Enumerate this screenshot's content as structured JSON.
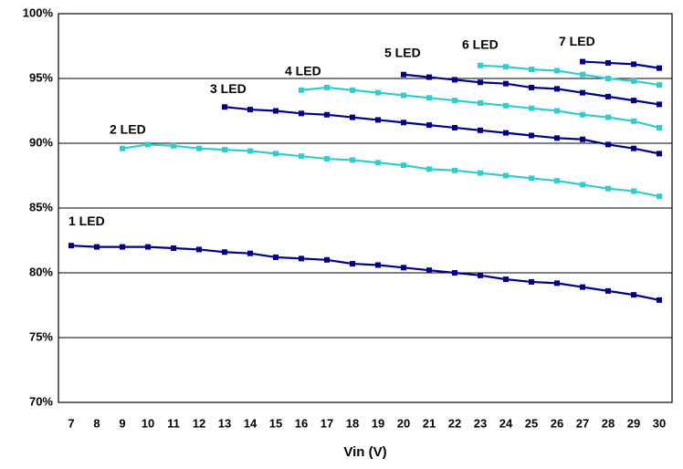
{
  "chart_data": {
    "type": "line",
    "xlabel": "Vin (V)",
    "categories": [
      7,
      8,
      9,
      10,
      11,
      12,
      13,
      14,
      15,
      16,
      17,
      18,
      19,
      20,
      21,
      22,
      23,
      24,
      25,
      26,
      27,
      28,
      29,
      30
    ],
    "series": [
      {
        "name": "1 LED",
        "color": "#000080",
        "values": [
          82.1,
          82.0,
          82.0,
          82.0,
          81.9,
          81.8,
          81.6,
          81.5,
          81.2,
          81.1,
          81.0,
          80.7,
          80.6,
          80.4,
          80.2,
          80.0,
          79.8,
          79.5,
          79.3,
          79.2,
          78.9,
          78.6,
          78.3,
          77.9
        ]
      },
      {
        "name": "2 LED",
        "color": "#33cccc",
        "values": [
          null,
          null,
          89.6,
          89.9,
          89.8,
          89.6,
          89.5,
          89.4,
          89.2,
          89.0,
          88.8,
          88.7,
          88.5,
          88.3,
          88.0,
          87.9,
          87.7,
          87.5,
          87.3,
          87.1,
          86.8,
          86.5,
          86.3,
          85.9
        ]
      },
      {
        "name": "3 LED",
        "color": "#000080",
        "values": [
          null,
          null,
          null,
          null,
          null,
          null,
          92.8,
          92.6,
          92.5,
          92.3,
          92.2,
          92.0,
          91.8,
          91.6,
          91.4,
          91.2,
          91.0,
          90.8,
          90.6,
          90.4,
          90.3,
          89.9,
          89.6,
          89.2
        ]
      },
      {
        "name": "4 LED",
        "color": "#33cccc",
        "values": [
          null,
          null,
          null,
          null,
          null,
          null,
          null,
          null,
          null,
          94.1,
          94.3,
          94.1,
          93.9,
          93.7,
          93.5,
          93.3,
          93.1,
          92.9,
          92.7,
          92.5,
          92.2,
          92.0,
          91.7,
          91.2
        ]
      },
      {
        "name": "5 LED",
        "color": "#000080",
        "values": [
          null,
          null,
          null,
          null,
          null,
          null,
          null,
          null,
          null,
          null,
          null,
          null,
          null,
          95.3,
          95.1,
          94.9,
          94.7,
          94.6,
          94.3,
          94.2,
          93.9,
          93.6,
          93.3,
          93.0
        ]
      },
      {
        "name": "6 LED",
        "color": "#33cccc",
        "values": [
          null,
          null,
          null,
          null,
          null,
          null,
          null,
          null,
          null,
          null,
          null,
          null,
          null,
          null,
          null,
          null,
          96.0,
          95.9,
          95.7,
          95.6,
          95.3,
          95.0,
          94.8,
          94.5
        ]
      },
      {
        "name": "7 LED",
        "color": "#000080",
        "values": [
          null,
          null,
          null,
          null,
          null,
          null,
          null,
          null,
          null,
          null,
          null,
          null,
          null,
          null,
          null,
          null,
          null,
          null,
          null,
          null,
          96.3,
          96.2,
          96.1,
          95.8
        ]
      }
    ],
    "ylim": [
      70,
      100
    ],
    "yticks": [
      {
        "value": 70,
        "label": "70%"
      },
      {
        "value": 75,
        "label": "75%"
      },
      {
        "value": 80,
        "label": "80%"
      },
      {
        "value": 85,
        "label": "85%"
      },
      {
        "value": 90,
        "label": "90%"
      },
      {
        "value": 95,
        "label": "95%"
      },
      {
        "value": 100,
        "label": "100%"
      }
    ],
    "grid": true
  }
}
